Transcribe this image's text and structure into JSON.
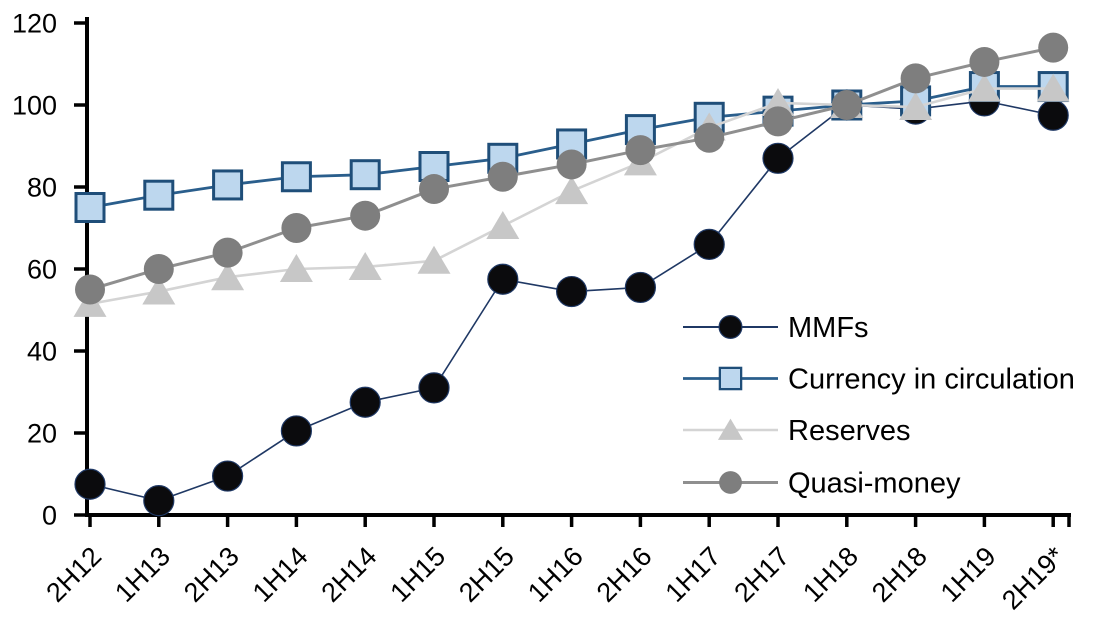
{
  "figure": {
    "background": "#ffffff",
    "axis_color": "#000000",
    "text_color": "#000000"
  },
  "chart_data": {
    "type": "line",
    "title": "",
    "xlabel": "",
    "ylabel": "",
    "ylim": [
      0,
      120
    ],
    "y_ticks": [
      0,
      20,
      40,
      60,
      80,
      100,
      120
    ],
    "grid": false,
    "legend_position": "inside-right",
    "categories": [
      "2H12",
      "1H13",
      "2H13",
      "1H14",
      "2H14",
      "1H15",
      "2H15",
      "1H16",
      "2H16",
      "1H17",
      "2H17",
      "1H18",
      "2H18",
      "1H19",
      "2H19*"
    ],
    "series": [
      {
        "name": "MMFs",
        "marker": "circle",
        "marker_fill": "#0b0b0d",
        "marker_stroke": "#1f3864",
        "line_color": "#1f3864",
        "line_width": 1.6,
        "values": [
          7.5,
          3.5,
          9.5,
          20.5,
          27.5,
          31,
          57.5,
          54.5,
          55.5,
          66,
          87,
          100,
          99,
          101,
          97.5
        ]
      },
      {
        "name": "Currency in circulation",
        "marker": "square",
        "marker_fill": "#bdd7ee",
        "marker_stroke": "#1f4e79",
        "line_color": "#2a5e8c",
        "line_width": 2.8,
        "values": [
          75,
          78,
          80.5,
          82.5,
          83,
          85,
          87,
          90.5,
          94,
          97,
          98.5,
          100,
          101,
          104.5,
          104.5
        ]
      },
      {
        "name": "Reserves",
        "marker": "triangle",
        "marker_fill": "#c7c7c7",
        "marker_stroke": "none",
        "line_color": "#d4d4d4",
        "line_width": 2.6,
        "values": [
          51.5,
          54.5,
          58,
          60,
          60.5,
          62,
          70.5,
          79,
          86,
          94.5,
          100.5,
          100,
          99.5,
          104,
          104
        ]
      },
      {
        "name": "Quasi-money",
        "marker": "circle",
        "marker_fill": "#7e7e7e",
        "marker_stroke": "none",
        "line_color": "#8f8f8f",
        "line_width": 3,
        "values": [
          55,
          60,
          64,
          70,
          73,
          79.5,
          82.5,
          85.5,
          89,
          92,
          96,
          100,
          106.5,
          110.5,
          114
        ]
      }
    ]
  }
}
